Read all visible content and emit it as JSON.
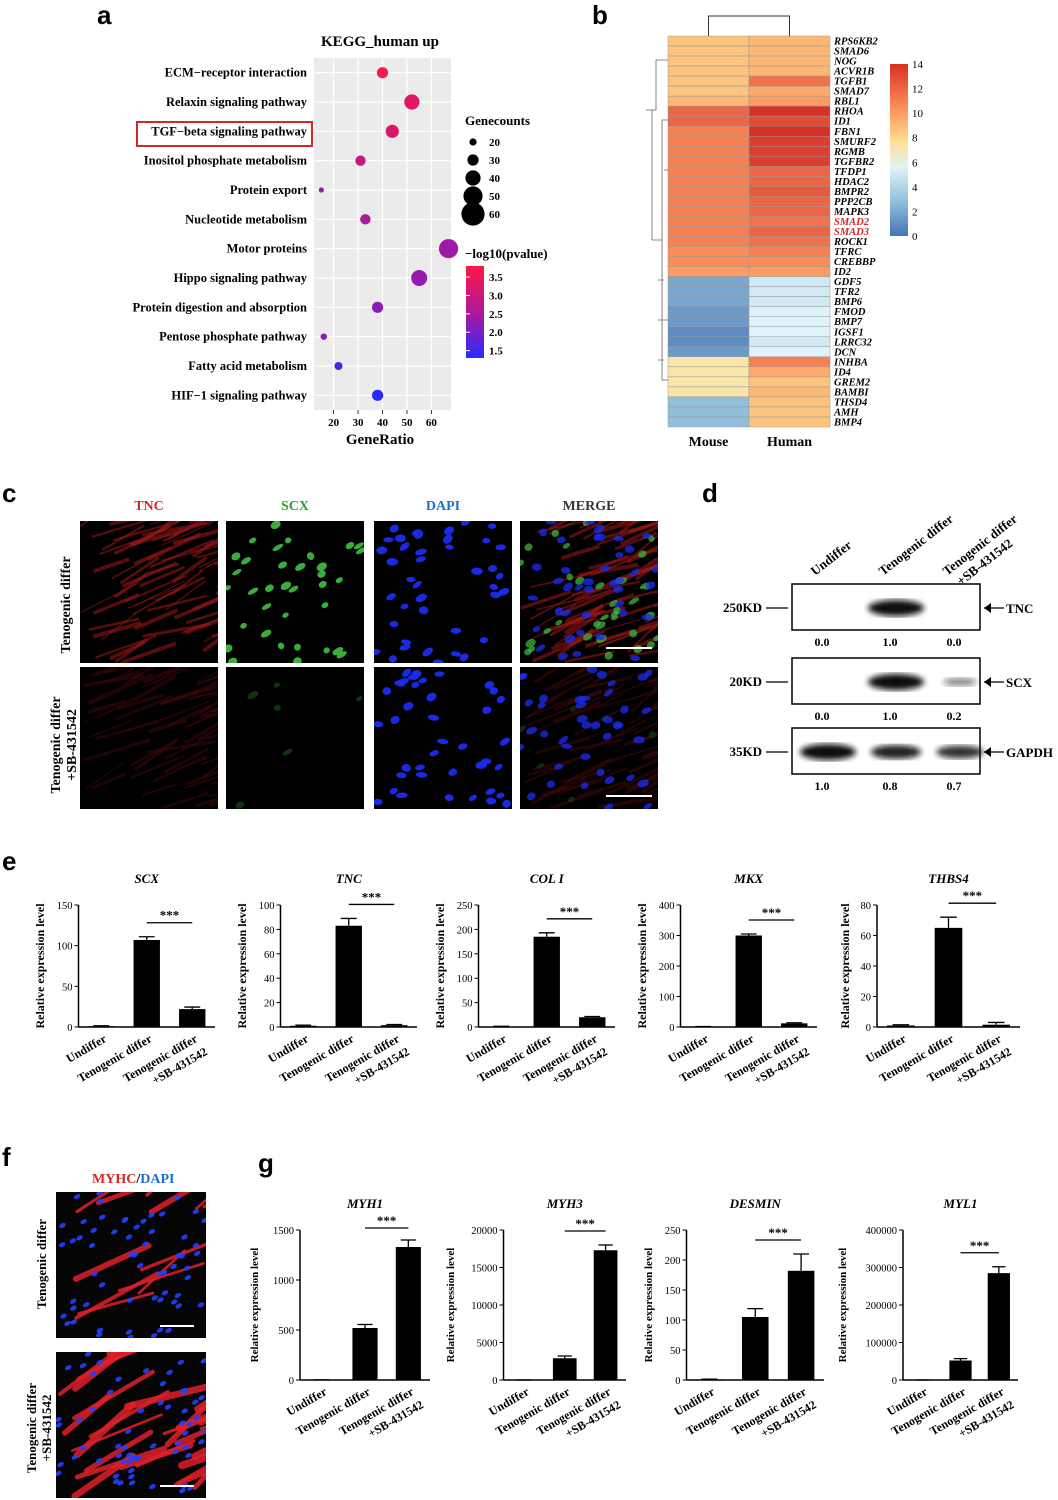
{
  "panels": {
    "a": "a",
    "b": "b",
    "c": "c",
    "d": "d",
    "e": "e",
    "f": "f",
    "g": "g"
  },
  "panel_a": {
    "title": "KEGG_human up",
    "xlabel": "GeneRatio",
    "xticks": [
      "20",
      "30",
      "40",
      "50",
      "60"
    ],
    "size_legend_title": "Genecounts",
    "size_legend_values": [
      "20",
      "30",
      "40",
      "50",
      "60"
    ],
    "color_legend_title": "−log10(pvalue)",
    "color_legend_values": [
      "3.5",
      "3.0",
      "2.5",
      "2.0",
      "1.5"
    ],
    "highlight_color": "#d62728"
  },
  "panel_b": {
    "columns": [
      "Mouse",
      "Human"
    ],
    "genes": [
      "RPS6KB2",
      "SMAD6",
      "NOG",
      "ACVR1B",
      "TGFB1",
      "SMAD7",
      "RBL1",
      "RHOA",
      "ID1",
      "FBN1",
      "SMURF2",
      "RGMB",
      "TGFBR2",
      "TFDP1",
      "HDAC2",
      "BMPR2",
      "PPP2CB",
      "MAPK3",
      "SMAD2",
      "SMAD3",
      "ROCK1",
      "TFRC",
      "CREBBP",
      "ID2",
      "GDF5",
      "TFR2",
      "BMP6",
      "FMOD",
      "BMP7",
      "IGSF1",
      "LRRC32",
      "DCN",
      "INHBA",
      "ID4",
      "GREM2",
      "BAMBI",
      "THSD4",
      "AMH",
      "BMP4"
    ],
    "highlight_genes": [
      "SMAD2",
      "SMAD3"
    ],
    "highlight_color": "#d62728",
    "colorbar_ticks": [
      "14",
      "12",
      "10",
      "8",
      "6",
      "4",
      "2",
      "0"
    ]
  },
  "panel_c": {
    "channels": [
      "TNC",
      "SCX",
      "DAPI",
      "MERGE"
    ],
    "channel_colors": [
      "#d62728",
      "#2ca02c",
      "#1f6fd1",
      "#333333"
    ],
    "rows": [
      "Tenogenic differ",
      "Tenogenic differ +SB-431542"
    ],
    "row1": "Tenogenic differ",
    "row2a": "Tenogenic differ",
    "row2b": "+SB-431542"
  },
  "panel_d": {
    "lanes": [
      "Undiffer",
      "Tenogenic differ",
      "Tenogenic differ"
    ],
    "lane3_sub": "+SB-431542",
    "blots": [
      {
        "marker": "250KD",
        "protein": "TNC",
        "values": [
          "0.0",
          "1.0",
          "0.0"
        ]
      },
      {
        "marker": "20KD",
        "protein": "SCX",
        "values": [
          "0.0",
          "1.0",
          "0.2"
        ]
      },
      {
        "marker": "35KD",
        "protein": "GAPDH",
        "values": [
          "1.0",
          "0.8",
          "0.7"
        ]
      }
    ]
  },
  "bar_common": {
    "ylabel": "Relative expression level",
    "cat1": "Undiffer",
    "cat2": "Tenogenic differ",
    "cat3a": "Tenogenic differ",
    "cat3b": "+SB-431542",
    "sig": "***"
  },
  "panel_f": {
    "title_red": "MYHC",
    "title_sep": "/",
    "title_blue": "DAPI",
    "row1": "Tenogenic differ",
    "row2a": "Tenogenic differ",
    "row2b": "+SB-431542"
  },
  "chart_data": [
    {
      "type": "scatter",
      "title": "KEGG_human up",
      "xlabel": "GeneRatio",
      "xlim": [
        12,
        68
      ],
      "categories": [
        "ECM−receptor interaction",
        "Relaxin signaling pathway",
        "TGF−beta signaling pathway",
        "Inositol phosphate metabolism",
        "Protein export",
        "Nucleotide metabolism",
        "Motor proteins",
        "Hippo signaling pathway",
        "Protein digestion and absorption",
        "Pentose phosphate pathway",
        "Fatty acid metabolism",
        "HIF−1 signaling pathway"
      ],
      "x": [
        40,
        52,
        44,
        31,
        15,
        33,
        67,
        55,
        38,
        16,
        22,
        38
      ],
      "genecounts": [
        30,
        40,
        35,
        28,
        15,
        28,
        50,
        42,
        30,
        18,
        22,
        30
      ],
      "neg_log10_pvalue": [
        3.7,
        3.3,
        3.2,
        2.9,
        2.3,
        2.5,
        2.4,
        2.3,
        2.2,
        2.2,
        1.6,
        1.3
      ]
    },
    {
      "type": "heatmap",
      "columns": [
        "Mouse",
        "Human"
      ],
      "rows": [
        "RPS6KB2",
        "SMAD6",
        "NOG",
        "ACVR1B",
        "TGFB1",
        "SMAD7",
        "RBL1",
        "RHOA",
        "ID1",
        "FBN1",
        "SMURF2",
        "RGMB",
        "TGFBR2",
        "TFDP1",
        "HDAC2",
        "BMPR2",
        "PPP2CB",
        "MAPK3",
        "SMAD2",
        "SMAD3",
        "ROCK1",
        "TFRC",
        "CREBBP",
        "ID2",
        "GDF5",
        "TFR2",
        "BMP6",
        "FMOD",
        "BMP7",
        "IGSF1",
        "LRRC32",
        "DCN",
        "INHBA",
        "ID4",
        "GREM2",
        "BAMBI",
        "THSD4",
        "AMH",
        "BMP4"
      ],
      "values": [
        [
          8.5,
          9
        ],
        [
          8.5,
          9
        ],
        [
          8.5,
          9
        ],
        [
          8.5,
          9
        ],
        [
          8.5,
          11.5
        ],
        [
          8.5,
          9.5
        ],
        [
          9,
          10
        ],
        [
          12,
          14
        ],
        [
          12,
          13
        ],
        [
          11,
          14
        ],
        [
          11,
          13.5
        ],
        [
          11,
          13.5
        ],
        [
          11,
          13.5
        ],
        [
          11,
          12
        ],
        [
          11,
          12
        ],
        [
          11,
          12.5
        ],
        [
          11,
          12
        ],
        [
          11,
          12
        ],
        [
          11,
          11.5
        ],
        [
          11,
          12
        ],
        [
          11,
          11.5
        ],
        [
          10.5,
          11
        ],
        [
          10.5,
          10.5
        ],
        [
          10,
          10
        ],
        [
          2,
          5
        ],
        [
          2,
          5
        ],
        [
          2,
          5
        ],
        [
          1.5,
          5.5
        ],
        [
          1.5,
          5.5
        ],
        [
          1,
          5.5
        ],
        [
          1,
          5
        ],
        [
          1.5,
          5.5
        ],
        [
          7,
          11
        ],
        [
          7,
          9.5
        ],
        [
          7,
          8.5
        ],
        [
          7,
          9
        ],
        [
          3,
          8.5
        ],
        [
          3,
          8.5
        ],
        [
          3,
          8.5
        ]
      ],
      "colorbar_range": [
        0,
        14
      ]
    },
    {
      "type": "bar",
      "title": "SCX",
      "categories": [
        "Undiffer",
        "Tenogenic differ",
        "Tenogenic differ +SB-431542"
      ],
      "values": [
        1,
        107,
        22
      ],
      "errors": [
        0.5,
        4,
        2.5
      ],
      "ylim": [
        0,
        150
      ],
      "yticks": [
        0,
        50,
        100,
        150
      ],
      "ylabel": "Relative expression level"
    },
    {
      "type": "bar",
      "title": "TNC",
      "categories": [
        "Undiffer",
        "Tenogenic differ",
        "Tenogenic differ +SB-431542"
      ],
      "values": [
        1,
        83,
        1.5
      ],
      "errors": [
        0.5,
        6,
        0.5
      ],
      "ylim": [
        0,
        100
      ],
      "yticks": [
        0,
        20,
        40,
        60,
        80,
        100
      ],
      "ylabel": "Relative expression level"
    },
    {
      "type": "bar",
      "title": "COL I",
      "categories": [
        "Undiffer",
        "Tenogenic differ",
        "Tenogenic differ +SB-431542"
      ],
      "values": [
        1,
        185,
        20
      ],
      "errors": [
        0.5,
        8,
        1.5
      ],
      "ylim": [
        0,
        250
      ],
      "yticks": [
        0,
        50,
        100,
        150,
        200,
        250
      ],
      "ylabel": "Relative expression level"
    },
    {
      "type": "bar",
      "title": "MKX",
      "categories": [
        "Undiffer",
        "Tenogenic differ",
        "Tenogenic differ +SB-431542"
      ],
      "values": [
        1,
        300,
        12
      ],
      "errors": [
        0.5,
        5,
        2
      ],
      "ylim": [
        0,
        400
      ],
      "yticks": [
        0,
        100,
        200,
        300,
        400
      ],
      "ylabel": "Relative expression level"
    },
    {
      "type": "bar",
      "title": "THBS4",
      "categories": [
        "Undiffer",
        "Tenogenic differ",
        "Tenogenic differ +SB-431542"
      ],
      "values": [
        1,
        65,
        1.5
      ],
      "errors": [
        0.5,
        7,
        1.5
      ],
      "ylim": [
        0,
        80
      ],
      "yticks": [
        0,
        20,
        40,
        60,
        80
      ],
      "ylabel": "Relative expression level"
    },
    {
      "type": "bar",
      "title": "MYH1",
      "categories": [
        "Undiffer",
        "Tenogenic differ",
        "Tenogenic differ +SB-431542"
      ],
      "values": [
        1,
        520,
        1330
      ],
      "errors": [
        0.5,
        35,
        70
      ],
      "ylim": [
        0,
        1500
      ],
      "yticks": [
        0,
        500,
        1000,
        1500
      ],
      "ylabel": "Relative expression level"
    },
    {
      "type": "bar",
      "title": "MYH3",
      "categories": [
        "Undiffer",
        "Tenogenic differ",
        "Tenogenic differ +SB-431542"
      ],
      "values": [
        1,
        2900,
        17300
      ],
      "errors": [
        0.5,
        300,
        700
      ],
      "ylim": [
        0,
        20000
      ],
      "yticks": [
        0,
        5000,
        10000,
        15000,
        20000
      ],
      "ylabel": "Relative expression level"
    },
    {
      "type": "bar",
      "title": "DESMIN",
      "categories": [
        "Undiffer",
        "Tenogenic differ",
        "Tenogenic differ +SB-431542"
      ],
      "values": [
        1,
        105,
        182
      ],
      "errors": [
        0.5,
        14,
        28
      ],
      "ylim": [
        0,
        250
      ],
      "yticks": [
        0,
        50,
        100,
        150,
        200,
        250
      ],
      "ylabel": "Relative expression level"
    },
    {
      "type": "bar",
      "title": "MYL1",
      "categories": [
        "Undiffer",
        "Tenogenic differ",
        "Tenogenic differ +SB-431542"
      ],
      "values": [
        1,
        52000,
        285000
      ],
      "errors": [
        0.5,
        5000,
        17000
      ],
      "ylim": [
        0,
        400000
      ],
      "yticks": [
        0,
        100000,
        200000,
        300000,
        400000
      ],
      "ylabel": "Relative expression level"
    }
  ]
}
